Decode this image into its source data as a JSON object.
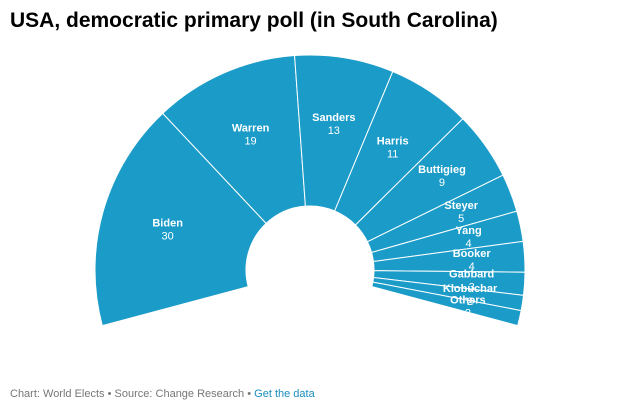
{
  "title": "USA, democratic primary poll (in South Carolina)",
  "footer": {
    "chart_credit": "Chart: World Elects",
    "separator": "•",
    "source": "Source: Change Research",
    "link_label": "Get the data"
  },
  "colors": {
    "segment_fill": "#1a9bc8",
    "segment_stroke": "#ffffff",
    "label_color": "#ffffff"
  },
  "chart_data": {
    "type": "pie",
    "variant": "semicircle-donut",
    "title": "USA, democratic primary poll (in South Carolina)",
    "categories": [
      "Biden",
      "Warren",
      "Sanders",
      "Harris",
      "Buttigieg",
      "Steyer",
      "Yang",
      "Booker",
      "Gabbard",
      "Klobuchar",
      "Others"
    ],
    "values": [
      30,
      19,
      13,
      11,
      9,
      5,
      4,
      4,
      3,
      2,
      2
    ],
    "legend": "none",
    "labels": "inside-segments"
  }
}
